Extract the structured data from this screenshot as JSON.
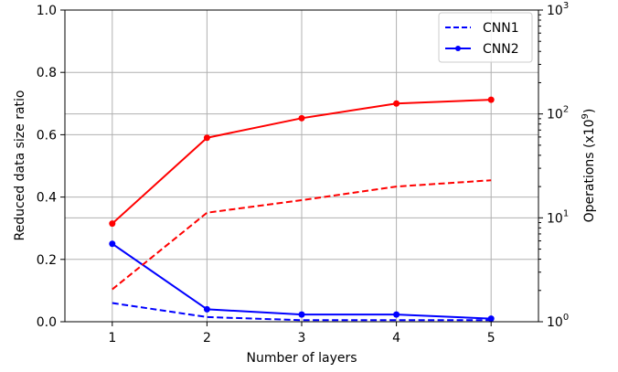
{
  "chart_data": {
    "type": "line",
    "title": "",
    "xlabel": "Number of layers",
    "ylabel": "Reduced data size ratio",
    "y2label": "Operations (x10",
    "y2label_superscript": "9",
    "y2label_suffix": ")",
    "x": [
      1,
      2,
      3,
      4,
      5
    ],
    "xlim": [
      0.5,
      5.5
    ],
    "ylim": [
      0.0,
      1.0
    ],
    "y2lim": [
      1,
      1000
    ],
    "y2scale": "log",
    "grid": true,
    "legend_position": "top-right",
    "x_ticks": [
      "1",
      "2",
      "3",
      "4",
      "5"
    ],
    "y_ticks": [
      "0.0",
      "0.2",
      "0.4",
      "0.6",
      "0.8",
      "1.0"
    ],
    "y2_ticks": [
      {
        "base": "10",
        "exp": "0"
      },
      {
        "base": "10",
        "exp": "1"
      },
      {
        "base": "10",
        "exp": "2"
      },
      {
        "base": "10",
        "exp": "3"
      }
    ],
    "series": [
      {
        "name": "CNN1",
        "axis": "left",
        "color": "#0000ff",
        "style": "dashed",
        "marker": false,
        "values": [
          0.06,
          0.015,
          0.005,
          0.005,
          0.005
        ]
      },
      {
        "name": "CNN2",
        "axis": "left",
        "color": "#0000ff",
        "style": "solid",
        "marker": true,
        "values": [
          0.25,
          0.04,
          0.023,
          0.023,
          0.01
        ]
      },
      {
        "axis": "right",
        "color": "#ff0000",
        "style": "dashed",
        "marker": false,
        "values": [
          2.05,
          11.2,
          14.8,
          20.0,
          23.0
        ]
      },
      {
        "axis": "right",
        "color": "#ff0000",
        "style": "solid",
        "marker": true,
        "values": [
          8.8,
          59.0,
          91.0,
          126.0,
          137.0
        ]
      }
    ]
  }
}
